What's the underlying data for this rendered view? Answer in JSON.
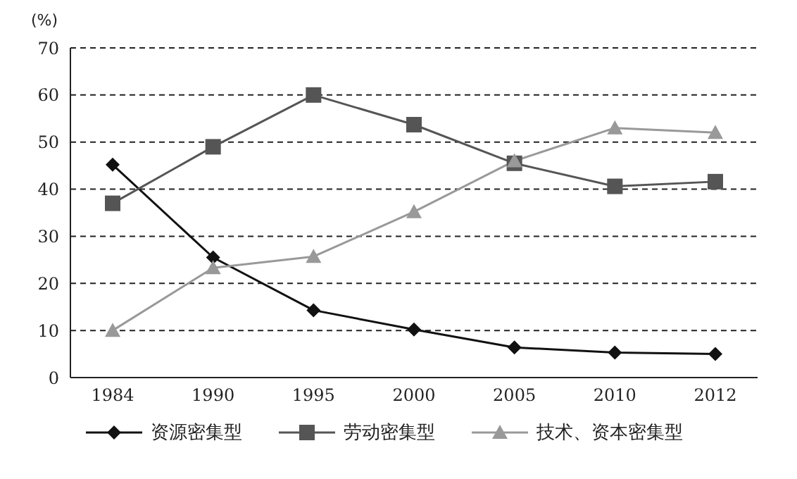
{
  "chart_data": {
    "type": "line",
    "ylabel": "(%)",
    "categories": [
      "1984",
      "1990",
      "1995",
      "2000",
      "2005",
      "2010",
      "2012"
    ],
    "series": [
      {
        "name": "资源密集型",
        "color": "#111111",
        "marker": "diamond",
        "values": [
          45.2,
          25.5,
          14.3,
          10.2,
          6.4,
          5.3,
          5.0
        ]
      },
      {
        "name": "劳动密集型",
        "color": "#555555",
        "marker": "square",
        "values": [
          37,
          49,
          60,
          53.7,
          45.5,
          40.6,
          41.6
        ]
      },
      {
        "name": "技术、资本密集型",
        "color": "#999999",
        "marker": "triangle",
        "values": [
          10,
          23.3,
          25.7,
          35.2,
          46,
          53,
          52
        ]
      }
    ],
    "ylim": [
      0,
      70
    ],
    "yticks": [
      0,
      10,
      20,
      30,
      40,
      50,
      60,
      70
    ],
    "grid": "y",
    "legend": "bottom",
    "line_style": "solid"
  }
}
